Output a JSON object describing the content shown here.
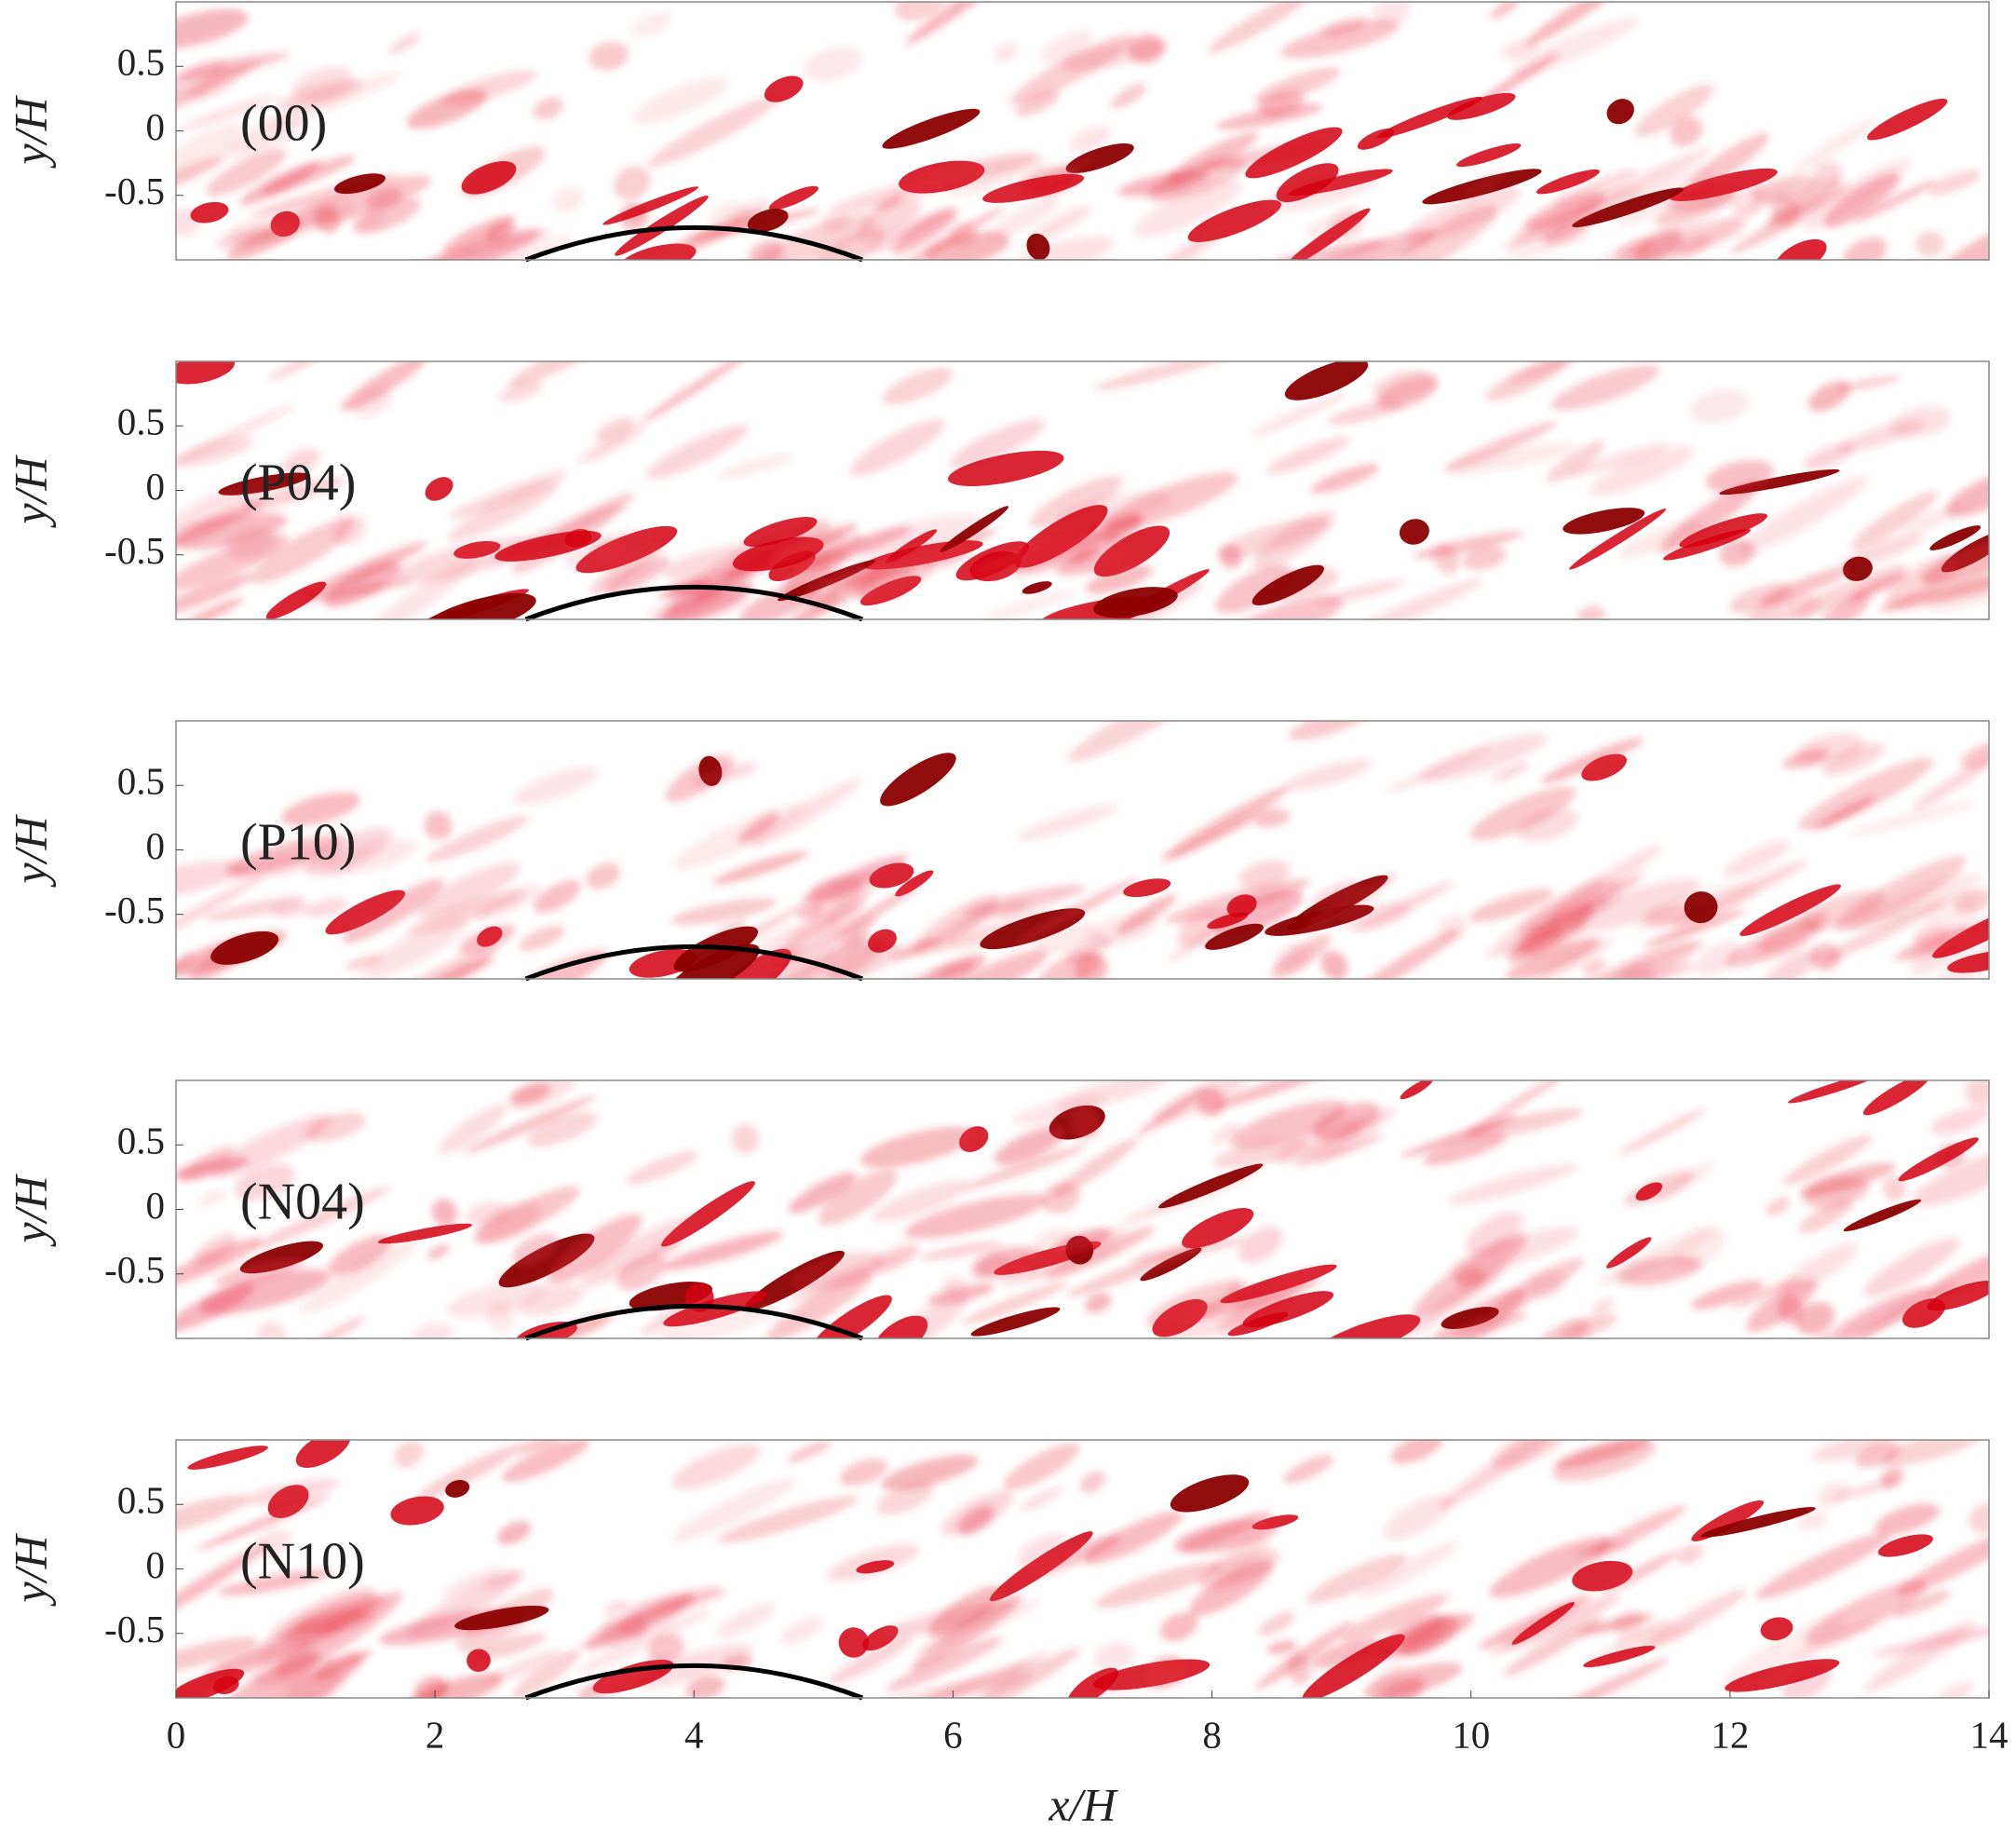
{
  "chart_data": [
    {
      "type": "field",
      "annotation": "(00)",
      "ylabel": "y/H",
      "ylim": [
        -1,
        1
      ],
      "yticks": [
        0.5,
        0,
        -0.5
      ],
      "xlim": [
        0,
        14
      ],
      "colormap": "reds"
    },
    {
      "type": "field",
      "annotation": "(P04)",
      "ylabel": "y/H",
      "ylim": [
        -1,
        1
      ],
      "yticks": [
        0.5,
        0,
        -0.5
      ],
      "xlim": [
        0,
        14
      ],
      "colormap": "reds"
    },
    {
      "type": "field",
      "annotation": "(P10)",
      "ylabel": "y/H",
      "ylim": [
        -1,
        1
      ],
      "yticks": [
        0.5,
        0,
        -0.5
      ],
      "xlim": [
        0,
        14
      ],
      "colormap": "reds"
    },
    {
      "type": "field",
      "annotation": "(N04)",
      "ylabel": "y/H",
      "ylim": [
        -1,
        1
      ],
      "yticks": [
        0.5,
        0,
        -0.5
      ],
      "xlim": [
        0,
        14
      ],
      "colormap": "reds"
    },
    {
      "type": "field",
      "annotation": "(N10)",
      "ylabel": "y/H",
      "xlabel": "x/H",
      "ylim": [
        -1,
        1
      ],
      "yticks": [
        0.5,
        0,
        -0.5
      ],
      "xlim": [
        0,
        14
      ],
      "xticks": [
        0,
        2,
        4,
        6,
        8,
        10,
        12,
        14
      ],
      "colormap": "reds"
    }
  ]
}
